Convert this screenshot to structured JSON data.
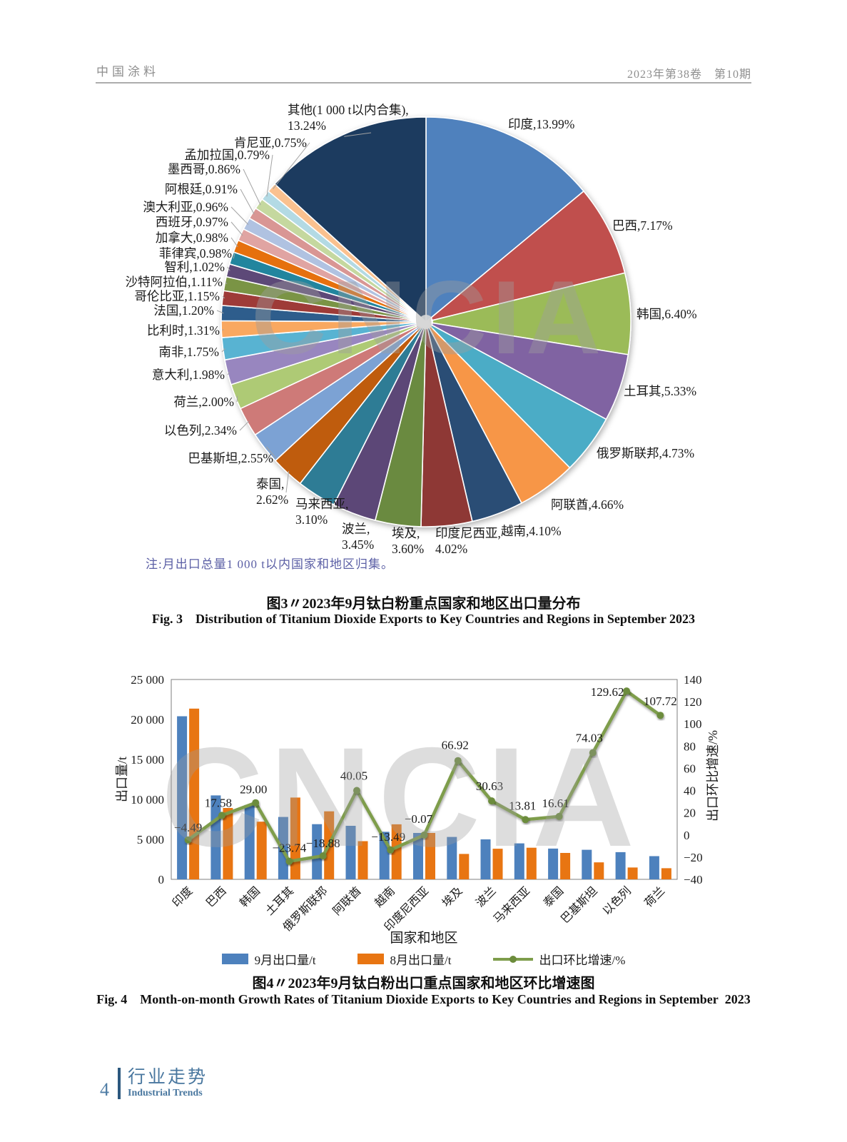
{
  "header": {
    "journal_name": "中国涂料",
    "issue_info": "2023年第38卷　第10期"
  },
  "figure3": {
    "note": "注:月出口总量1 000 t以内国家和地区归集。",
    "caption_zh": "图3〃2023年9月钛白粉重点国家和地区出口量分布",
    "caption_en": "Fig. 3 Distribution of Titanium Dioxide Exports to Key Countries and Regions in September 2023",
    "watermark": "CNCIA"
  },
  "figure4": {
    "caption_zh": "图4〃2023年9月钛白粉出口重点国家和地区环比增速图",
    "caption_en": "Fig. 4 Month-on-month Growth Rates of Titanium Dioxide Exports to Key Countries and Regions in September 2023",
    "watermark": "CNCIA"
  },
  "footer": {
    "page_number": "4",
    "section_zh": "行业走势",
    "section_en": "Industrial Trends"
  },
  "chart_data": [
    {
      "type": "pie",
      "title": "2023年9月钛白粉重点国家和地区出口量分布",
      "unit": "%",
      "slices": [
        {
          "label": "印度",
          "value": 13.99,
          "color": "#4F81BD"
        },
        {
          "label": "巴西",
          "value": 7.17,
          "color": "#C0504D"
        },
        {
          "label": "韩国",
          "value": 6.4,
          "color": "#9BBB59"
        },
        {
          "label": "土耳其",
          "value": 5.33,
          "color": "#8064A2"
        },
        {
          "label": "俄罗斯联邦",
          "value": 4.73,
          "color": "#4BACC6"
        },
        {
          "label": "阿联酋",
          "value": 4.66,
          "color": "#F79646"
        },
        {
          "label": "越南",
          "value": 4.1,
          "color": "#2C4D75"
        },
        {
          "label": "印度尼西亚",
          "value": 4.02,
          "color": "#8E3834"
        },
        {
          "label": "埃及",
          "value": 3.6,
          "color": "#6A8A3F"
        },
        {
          "label": "波兰",
          "value": 3.45,
          "color": "#5C4677"
        },
        {
          "label": "马来西亚",
          "value": 3.1,
          "color": "#2E7C95"
        },
        {
          "label": "泰国",
          "value": 2.62,
          "color": "#BF5B10"
        },
        {
          "label": "巴基斯坦",
          "value": 2.55,
          "color": "#7BA2D4"
        },
        {
          "label": "以色列",
          "value": 2.34,
          "color": "#CE7A78"
        },
        {
          "label": "荷兰",
          "value": 2.0,
          "color": "#AECA74"
        },
        {
          "label": "意大利",
          "value": 1.98,
          "color": "#9886BF"
        },
        {
          "label": "南非",
          "value": 1.75,
          "color": "#59B3D2"
        },
        {
          "label": "比利时",
          "value": 1.31,
          "color": "#F9A861"
        },
        {
          "label": "法国",
          "value": 1.2,
          "color": "#2F5D8C"
        },
        {
          "label": "哥伦比亚",
          "value": 1.15,
          "color": "#9E3B38"
        },
        {
          "label": "沙特阿拉伯",
          "value": 1.11,
          "color": "#7A9445"
        },
        {
          "label": "智利",
          "value": 1.02,
          "color": "#5D4878"
        },
        {
          "label": "菲律宾",
          "value": 0.98,
          "color": "#22859E"
        },
        {
          "label": "加拿大",
          "value": 0.98,
          "color": "#E67009"
        },
        {
          "label": "西班牙",
          "value": 0.97,
          "color": "#E0A4A2"
        },
        {
          "label": "澳大利亚",
          "value": 0.96,
          "color": "#B0C2E1"
        },
        {
          "label": "阿根廷",
          "value": 0.91,
          "color": "#D99694"
        },
        {
          "label": "墨西哥",
          "value": 0.86,
          "color": "#C5D89F"
        },
        {
          "label": "孟加拉国",
          "value": 0.79,
          "color": "#B3DAE4"
        },
        {
          "label": "肯尼亚",
          "value": 0.75,
          "color": "#FBC18F"
        },
        {
          "label": "其他(1 000 t以内合集)",
          "value": 13.24,
          "color": "#1E3B5E"
        }
      ]
    },
    {
      "type": "bar",
      "combo": "bar+line",
      "categories": [
        "印度",
        "巴西",
        "韩国",
        "土耳其",
        "俄罗斯联邦",
        "阿联酋",
        "越南",
        "印度尼西亚",
        "埃及",
        "波兰",
        "马来西亚",
        "泰国",
        "巴基斯坦",
        "以色列",
        "荷兰"
      ],
      "series": [
        {
          "name": "9月出口量/t",
          "type": "bar",
          "color": "#4D81BD",
          "values": [
            20400,
            10500,
            9300,
            7800,
            6900,
            6700,
            5950,
            5800,
            5300,
            5000,
            4500,
            3850,
            3700,
            3400,
            2900
          ]
        },
        {
          "name": "8月出口量/t",
          "type": "bar",
          "color": "#E87512",
          "values": [
            21360,
            8930,
            7210,
            10230,
            8510,
            4780,
            6880,
            5805,
            3175,
            3830,
            3955,
            3300,
            2125,
            1480,
            1395
          ]
        },
        {
          "name": "出口环比增速/%",
          "type": "line",
          "color": "#7E9D4B",
          "values": [
            -4.49,
            17.58,
            29.0,
            -23.74,
            -18.88,
            40.05,
            -13.49,
            -0.07,
            66.92,
            30.63,
            13.81,
            16.61,
            74.03,
            129.62,
            107.72
          ]
        }
      ],
      "left_axis": {
        "title": "出口量/t",
        "min": 0,
        "max": 25000,
        "tick_step": 5000
      },
      "right_axis": {
        "title": "出口环比增速/%",
        "min": -40,
        "max": 140,
        "tick_step": 20
      },
      "xlabel": "国家和地区",
      "legend_position": "bottom",
      "grid": false
    }
  ]
}
